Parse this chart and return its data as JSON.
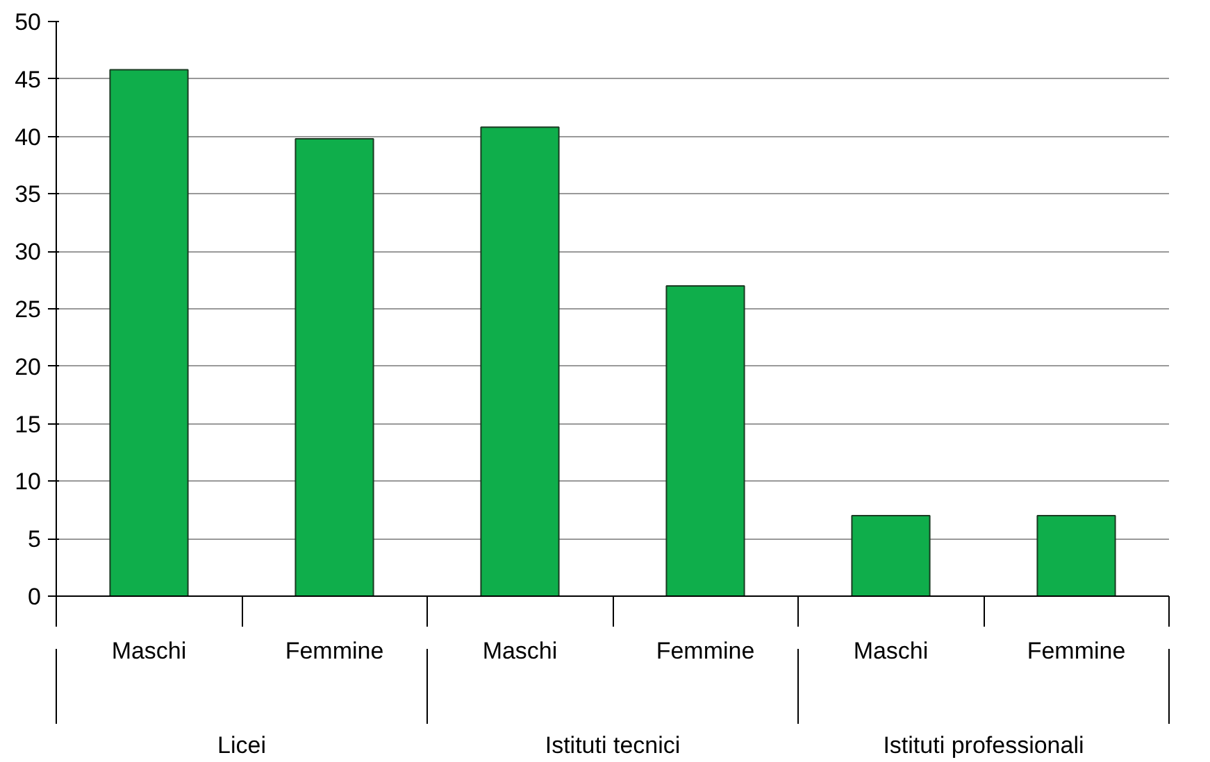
{
  "chart_data": {
    "type": "bar",
    "categories": [
      "Maschi",
      "Femmine",
      "Maschi",
      "Femmine",
      "Maschi",
      "Femmine"
    ],
    "annotations": [
      "Licei",
      "Istituti tecnici",
      "Istituti professionali"
    ],
    "values": [
      45.8,
      39.8,
      40.8,
      27,
      7,
      7
    ],
    "color": "#0fae4b",
    "ylim": [
      0,
      50
    ],
    "yticks": [
      0,
      5,
      10,
      15,
      20,
      25,
      30,
      35,
      40,
      45,
      50
    ],
    "grid": "y"
  }
}
